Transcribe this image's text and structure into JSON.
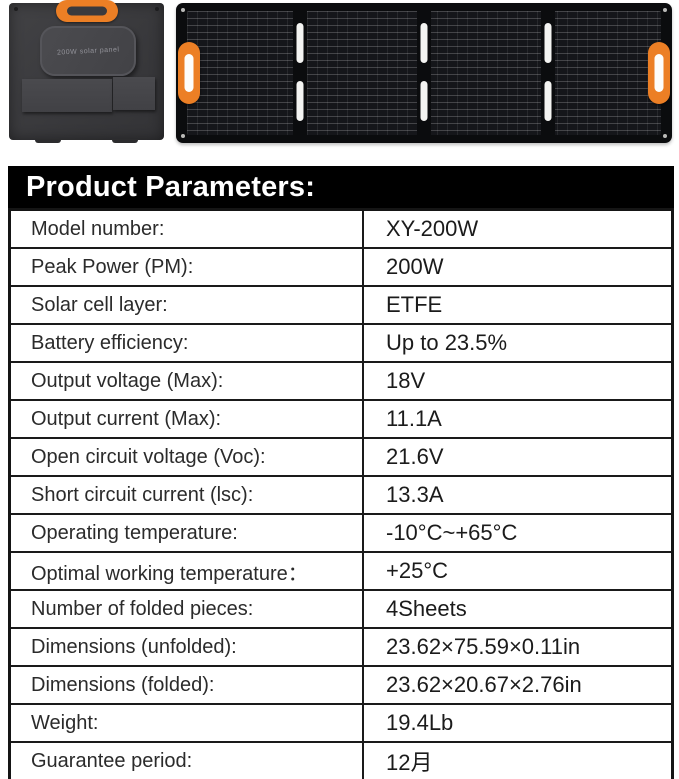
{
  "hero": {
    "folded_panel": {
      "pouch_label": "200W solar panel",
      "body_color": "#3b3b3e",
      "handle_color": "#ec7f25"
    },
    "unfolded_panel": {
      "body_color": "#0b0c0e",
      "handle_color": "#ec7f25",
      "sections": 4
    }
  },
  "header": {
    "title": "Product Parameters:",
    "bar_color": "#000000",
    "text_color": "#ffffff"
  },
  "table": {
    "border_color": "#1a1a1a",
    "rows": [
      {
        "label": "Model number:",
        "value": "XY-200W"
      },
      {
        "label": "Peak Power (PM):",
        "value": "200W"
      },
      {
        "label": "Solar cell layer:",
        "value": "ETFE"
      },
      {
        "label": "Battery efficiency:",
        "value": "Up to 23.5%"
      },
      {
        "label": "Output voltage (Max):",
        "value": "18V"
      },
      {
        "label": "Output current (Max):",
        "value": "11.1A"
      },
      {
        "label": "Open circuit voltage (Voc):",
        "value": "21.6V"
      },
      {
        "label": "Short circuit current (lsc):",
        "value": "13.3A"
      },
      {
        "label": "Operating temperature:",
        "value": "-10°C~+65°C"
      },
      {
        "label": "Optimal working temperature：",
        "value": "+25°C"
      },
      {
        "label": "Number of folded pieces:",
        "value": "4Sheets"
      },
      {
        "label": "Dimensions (unfolded):",
        "value": "23.62×75.59×0.11in"
      },
      {
        "label": "Dimensions (folded):",
        "value": "23.62×20.67×2.76in"
      },
      {
        "label": "Weight:",
        "value": "19.4Lb"
      },
      {
        "label": "Guarantee period:",
        "value": "12月"
      }
    ]
  }
}
